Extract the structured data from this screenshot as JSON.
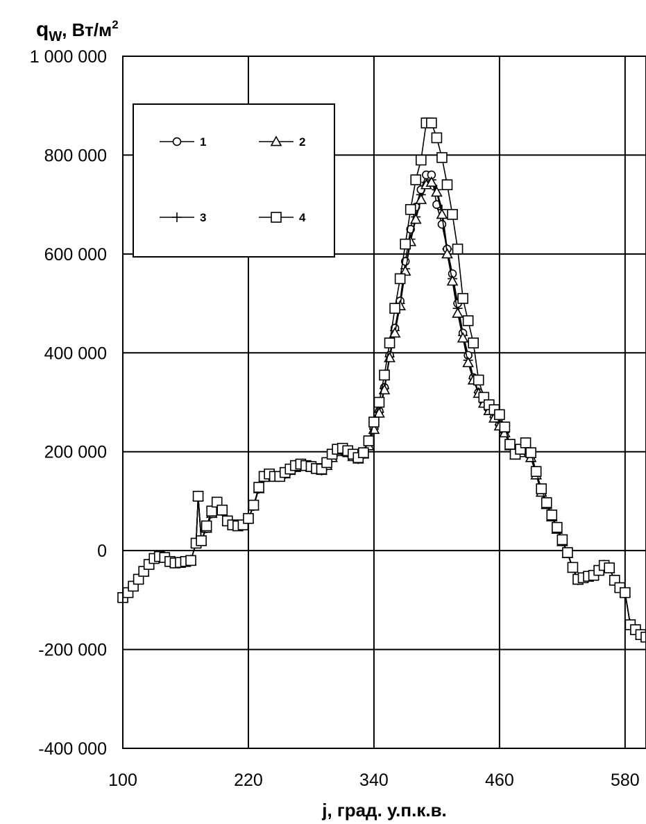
{
  "chart_data": {
    "type": "line",
    "ylabel_main": "q",
    "ylabel_sub": "W",
    "ylabel_unit": ", Вт/м",
    "ylabel_sup": "2",
    "xlabel": "j, град. у.п.к.в.",
    "xlim": [
      100,
      600
    ],
    "ylim": [
      -400000,
      1000000
    ],
    "x_ticks": [
      100,
      220,
      340,
      460,
      580
    ],
    "x_tick_labels": [
      "100",
      "220",
      "340",
      "460",
      "580"
    ],
    "y_ticks": [
      1000000,
      800000,
      600000,
      400000,
      200000,
      0,
      -200000,
      -400000
    ],
    "y_tick_labels": [
      "1 000 000",
      "800 000",
      "600 000",
      "400 000",
      "200 000",
      "0",
      "-200 000",
      "-400 000"
    ],
    "grid": true,
    "legend_position": "top-left",
    "series": [
      {
        "name": "1",
        "marker": "circle",
        "x": [
          100,
          105,
          110,
          115,
          120,
          125,
          130,
          135,
          140,
          145,
          150,
          155,
          160,
          165,
          170,
          172,
          175,
          180,
          185,
          190,
          195,
          200,
          205,
          210,
          215,
          220,
          225,
          230,
          235,
          240,
          245,
          250,
          255,
          260,
          265,
          270,
          275,
          280,
          285,
          290,
          295,
          300,
          305,
          310,
          315,
          320,
          325,
          330,
          335,
          340,
          345,
          350,
          355,
          360,
          365,
          370,
          375,
          380,
          385,
          390,
          395,
          400,
          405,
          410,
          415,
          420,
          425,
          430,
          435,
          440,
          445,
          450,
          455,
          460,
          465,
          470,
          475,
          480,
          485,
          490,
          495,
          500,
          505,
          510,
          515,
          520,
          525,
          530,
          535,
          540,
          545,
          550,
          555,
          560,
          565,
          570,
          575,
          580,
          585,
          590,
          595,
          600
        ],
        "y": [
          -95000,
          -85000,
          -72000,
          -58000,
          -42000,
          -28000,
          -16000,
          -12000,
          -14000,
          -22000,
          -25000,
          -24000,
          -22000,
          -20000,
          15000,
          110000,
          20000,
          45000,
          75000,
          92000,
          80000,
          60000,
          52000,
          50000,
          52000,
          65000,
          90000,
          125000,
          148000,
          152000,
          150000,
          150000,
          155000,
          162000,
          168000,
          172000,
          170000,
          168000,
          165000,
          162000,
          172000,
          188000,
          200000,
          203000,
          198000,
          190000,
          185000,
          195000,
          215000,
          248000,
          282000,
          330000,
          395000,
          450000,
          505000,
          585000,
          650000,
          695000,
          730000,
          760000,
          760000,
          700000,
          660000,
          610000,
          560000,
          500000,
          440000,
          395000,
          350000,
          320000,
          300000,
          285000,
          270000,
          255000,
          240000,
          215000,
          195000,
          200000,
          205000,
          190000,
          155000,
          120000,
          95000,
          70000,
          45000,
          20000,
          -5000,
          -35000,
          -60000,
          -55000,
          -52000,
          -50000,
          -40000,
          -30000,
          -35000,
          -60000,
          -75000,
          -85000,
          -150000,
          -160000,
          -170000,
          -175000
        ]
      },
      {
        "name": "2",
        "marker": "triangle",
        "x": [
          100,
          105,
          110,
          115,
          120,
          125,
          130,
          135,
          140,
          145,
          150,
          155,
          160,
          165,
          170,
          172,
          175,
          180,
          185,
          190,
          195,
          200,
          205,
          210,
          215,
          220,
          225,
          230,
          235,
          240,
          245,
          250,
          255,
          260,
          265,
          270,
          275,
          280,
          285,
          290,
          295,
          300,
          305,
          310,
          315,
          320,
          325,
          330,
          335,
          340,
          345,
          350,
          355,
          360,
          365,
          370,
          375,
          380,
          385,
          390,
          395,
          400,
          405,
          410,
          415,
          420,
          425,
          430,
          435,
          440,
          445,
          450,
          455,
          460,
          465,
          470,
          475,
          480,
          485,
          490,
          495,
          500,
          505,
          510,
          515,
          520,
          525,
          530,
          535,
          540,
          545,
          550,
          555,
          560,
          565,
          570,
          575,
          580,
          585,
          590,
          595,
          600
        ],
        "y": [
          -95000,
          -85000,
          -72000,
          -58000,
          -42000,
          -28000,
          -16000,
          -12000,
          -14000,
          -22000,
          -25000,
          -24000,
          -22000,
          -20000,
          15000,
          110000,
          20000,
          45000,
          75000,
          92000,
          80000,
          60000,
          52000,
          50000,
          52000,
          65000,
          90000,
          125000,
          148000,
          152000,
          150000,
          150000,
          155000,
          162000,
          168000,
          172000,
          170000,
          168000,
          165000,
          162000,
          172000,
          188000,
          200000,
          203000,
          198000,
          190000,
          185000,
          195000,
          212000,
          245000,
          278000,
          325000,
          390000,
          440000,
          495000,
          565000,
          625000,
          670000,
          710000,
          740000,
          745000,
          725000,
          680000,
          600000,
          545000,
          480000,
          430000,
          380000,
          345000,
          318000,
          298000,
          283000,
          268000,
          252000,
          238000,
          212000,
          193000,
          198000,
          203000,
          188000,
          153000,
          118000,
          93000,
          68000,
          43000,
          18000,
          -6000,
          -36000,
          -60000,
          -55000,
          -52000,
          -50000,
          -40000,
          -30000,
          -35000,
          -60000,
          -75000,
          -85000,
          -150000,
          -160000,
          -170000,
          -175000
        ]
      },
      {
        "name": "3",
        "marker": "plus",
        "x": [
          100,
          105,
          110,
          115,
          120,
          125,
          130,
          135,
          140,
          145,
          150,
          155,
          160,
          165,
          170,
          172,
          175,
          180,
          185,
          190,
          195,
          200,
          205,
          210,
          215,
          220,
          225,
          230,
          235,
          240,
          245,
          250,
          255,
          260,
          265,
          270,
          275,
          280,
          285,
          290,
          295,
          300,
          305,
          310,
          315,
          320,
          325,
          330,
          335,
          340,
          345,
          350,
          355,
          360,
          365,
          370,
          375,
          380,
          385,
          390,
          395,
          400,
          405,
          410,
          415,
          420,
          425,
          430,
          435,
          440,
          445,
          450,
          455,
          460,
          465,
          470,
          475,
          480,
          485,
          490,
          495,
          500,
          505,
          510,
          515,
          520,
          525,
          530,
          535,
          540,
          545,
          550,
          555,
          560,
          565,
          570,
          575,
          580,
          585,
          590,
          595,
          600
        ],
        "y": [
          -95000,
          -85000,
          -72000,
          -58000,
          -42000,
          -28000,
          -16000,
          -12000,
          -14000,
          -22000,
          -25000,
          -24000,
          -22000,
          -20000,
          15000,
          110000,
          20000,
          45000,
          75000,
          92000,
          80000,
          60000,
          52000,
          50000,
          52000,
          65000,
          90000,
          125000,
          148000,
          152000,
          150000,
          150000,
          155000,
          162000,
          168000,
          172000,
          170000,
          168000,
          165000,
          162000,
          172000,
          188000,
          200000,
          203000,
          198000,
          190000,
          185000,
          195000,
          213000,
          246000,
          280000,
          328000,
          392000,
          445000,
          500000,
          570000,
          630000,
          675000,
          720000,
          745000,
          750000,
          730000,
          690000,
          610000,
          550000,
          490000,
          435000,
          385000,
          348000,
          320000,
          300000,
          284000,
          270000,
          254000,
          239000,
          213000,
          194000,
          199000,
          204000,
          189000,
          154000,
          119000,
          94000,
          69000,
          44000,
          19000,
          -5000,
          -35000,
          -60000,
          -55000,
          -52000,
          -50000,
          -40000,
          -30000,
          -35000,
          -60000,
          -75000,
          -85000,
          -150000,
          -160000,
          -170000,
          -175000
        ]
      },
      {
        "name": "4",
        "marker": "square",
        "x": [
          100,
          105,
          110,
          115,
          120,
          125,
          130,
          135,
          140,
          145,
          150,
          155,
          160,
          165,
          170,
          172,
          175,
          180,
          185,
          190,
          195,
          200,
          205,
          210,
          215,
          220,
          225,
          230,
          235,
          240,
          245,
          250,
          255,
          260,
          265,
          270,
          275,
          280,
          285,
          290,
          295,
          300,
          305,
          310,
          315,
          320,
          325,
          330,
          335,
          340,
          345,
          350,
          355,
          360,
          365,
          370,
          375,
          380,
          385,
          390,
          395,
          400,
          405,
          410,
          415,
          420,
          425,
          430,
          435,
          440,
          445,
          450,
          455,
          460,
          465,
          470,
          475,
          480,
          485,
          490,
          495,
          500,
          505,
          510,
          515,
          520,
          525,
          530,
          535,
          540,
          545,
          550,
          555,
          560,
          565,
          570,
          575,
          580,
          585,
          590,
          595,
          600
        ],
        "y": [
          -95000,
          -85000,
          -72000,
          -58000,
          -42000,
          -28000,
          -16000,
          -12000,
          -14000,
          -22000,
          -25000,
          -24000,
          -22000,
          -20000,
          15000,
          110000,
          20000,
          50000,
          80000,
          98000,
          82000,
          60000,
          52000,
          50000,
          52000,
          65000,
          92000,
          128000,
          150000,
          155000,
          150000,
          150000,
          158000,
          165000,
          172000,
          175000,
          172000,
          170000,
          166000,
          165000,
          178000,
          195000,
          205000,
          207000,
          202000,
          195000,
          188000,
          198000,
          222000,
          260000,
          300000,
          355000,
          420000,
          490000,
          550000,
          620000,
          690000,
          750000,
          790000,
          865000,
          865000,
          835000,
          795000,
          740000,
          680000,
          610000,
          510000,
          465000,
          420000,
          345000,
          310000,
          295000,
          285000,
          275000,
          250000,
          215000,
          195000,
          205000,
          218000,
          198000,
          160000,
          125000,
          97000,
          72000,
          47000,
          22000,
          -4000,
          -34000,
          -58000,
          -55000,
          -52000,
          -50000,
          -40000,
          -30000,
          -35000,
          -60000,
          -75000,
          -85000,
          -150000,
          -160000,
          -170000,
          -175000
        ]
      }
    ]
  }
}
